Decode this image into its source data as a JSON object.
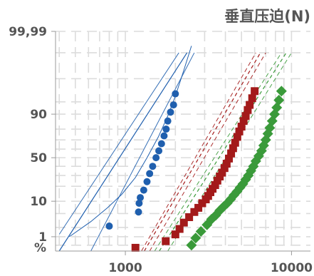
{
  "chart_data": {
    "type": "scatter",
    "title": "垂直压迫(N)",
    "x_scale": "log",
    "y_scale": "probability",
    "xlim": [
      380,
      13000
    ],
    "ylim": [
      0.3,
      99.99
    ],
    "grid": true,
    "x_ticks": [
      {
        "value": 1000,
        "label": "1000"
      },
      {
        "value": 10000,
        "label": "10000"
      }
    ],
    "y_ticks": [
      {
        "value": 99.99,
        "label": "99,99"
      },
      {
        "value": 90,
        "label": "90"
      },
      {
        "value": 50,
        "label": "50"
      },
      {
        "value": 10,
        "label": "10"
      },
      {
        "value": 1,
        "label": "1"
      }
    ],
    "ylabel": "%",
    "series": [
      {
        "color": "#1f5fae",
        "marker": "circle",
        "points": [
          [
            800,
            2.2
          ],
          [
            1200,
            5.5
          ],
          [
            1210,
            9
          ],
          [
            1230,
            12
          ],
          [
            1290,
            17
          ],
          [
            1350,
            24
          ],
          [
            1400,
            32
          ],
          [
            1460,
            40
          ],
          [
            1530,
            50
          ],
          [
            1590,
            58
          ],
          [
            1650,
            66
          ],
          [
            1710,
            74
          ],
          [
            1760,
            80
          ],
          [
            1800,
            86
          ],
          [
            1870,
            91
          ],
          [
            1950,
            94
          ],
          [
            2000,
            97
          ]
        ],
        "fit": [
          [
            400,
            0.3
          ],
          [
            2350,
            99.9
          ]
        ],
        "band_lower": [
          [
            620,
            0.3
          ],
          [
            2600,
            99.9
          ]
        ],
        "band_upper": [
          [
            400,
            1.2
          ],
          [
            2100,
            99.9
          ]
        ]
      },
      {
        "color": "#a31a1a",
        "marker": "square",
        "points": [
          [
            1150,
            0.4
          ],
          [
            1750,
            0.7
          ],
          [
            2000,
            1.2
          ],
          [
            2120,
            1.8
          ],
          [
            2250,
            2.8
          ],
          [
            2420,
            4
          ],
          [
            2600,
            5.5
          ],
          [
            2750,
            7
          ],
          [
            2900,
            9
          ],
          [
            3050,
            11
          ],
          [
            3150,
            13
          ],
          [
            3250,
            15.5
          ],
          [
            3350,
            18
          ],
          [
            3470,
            21
          ],
          [
            3580,
            25
          ],
          [
            3700,
            29
          ],
          [
            3820,
            33
          ],
          [
            3950,
            38
          ],
          [
            4070,
            43
          ],
          [
            4200,
            49
          ],
          [
            4330,
            55
          ],
          [
            4450,
            61
          ],
          [
            4580,
            67
          ],
          [
            4720,
            73
          ],
          [
            4850,
            78
          ],
          [
            5000,
            82
          ],
          [
            5150,
            86
          ],
          [
            5300,
            89
          ],
          [
            5450,
            92
          ],
          [
            5600,
            94
          ],
          [
            5800,
            96
          ],
          [
            6000,
            97.5
          ]
        ],
        "fit": [
          [
            1300,
            0.3
          ],
          [
            6500,
            99.9
          ]
        ],
        "band_lower": [
          [
            1400,
            0.3
          ],
          [
            7000,
            99.9
          ]
        ],
        "band_upper": [
          [
            1250,
            0.3
          ],
          [
            6100,
            99.9
          ]
        ]
      },
      {
        "color": "#3a9a3a",
        "marker": "diamond",
        "points": [
          [
            2500,
            0.5
          ],
          [
            2650,
            0.9
          ],
          [
            2850,
            1.5
          ],
          [
            3100,
            2.4
          ],
          [
            3300,
            3.5
          ],
          [
            3500,
            4.5
          ],
          [
            3700,
            6
          ],
          [
            3900,
            7.5
          ],
          [
            4100,
            9
          ],
          [
            4300,
            11
          ],
          [
            4500,
            13.5
          ],
          [
            4700,
            16
          ],
          [
            4900,
            19
          ],
          [
            5100,
            22
          ],
          [
            5300,
            26
          ],
          [
            5500,
            30
          ],
          [
            5700,
            35
          ],
          [
            5900,
            40
          ],
          [
            6100,
            46
          ],
          [
            6350,
            52
          ],
          [
            6600,
            58
          ],
          [
            6800,
            64
          ],
          [
            7000,
            70
          ],
          [
            7200,
            76
          ],
          [
            7400,
            81
          ],
          [
            7650,
            86
          ],
          [
            7900,
            90
          ],
          [
            8150,
            93
          ],
          [
            8400,
            95.5
          ],
          [
            8700,
            97.5
          ]
        ],
        "fit": [
          [
            1600,
            0.3
          ],
          [
            9300,
            99.9
          ]
        ],
        "band_lower": [
          [
            1800,
            0.3
          ],
          [
            10000,
            99.9
          ]
        ],
        "band_upper": [
          [
            1500,
            0.3
          ],
          [
            8700,
            99.9
          ]
        ]
      }
    ]
  }
}
